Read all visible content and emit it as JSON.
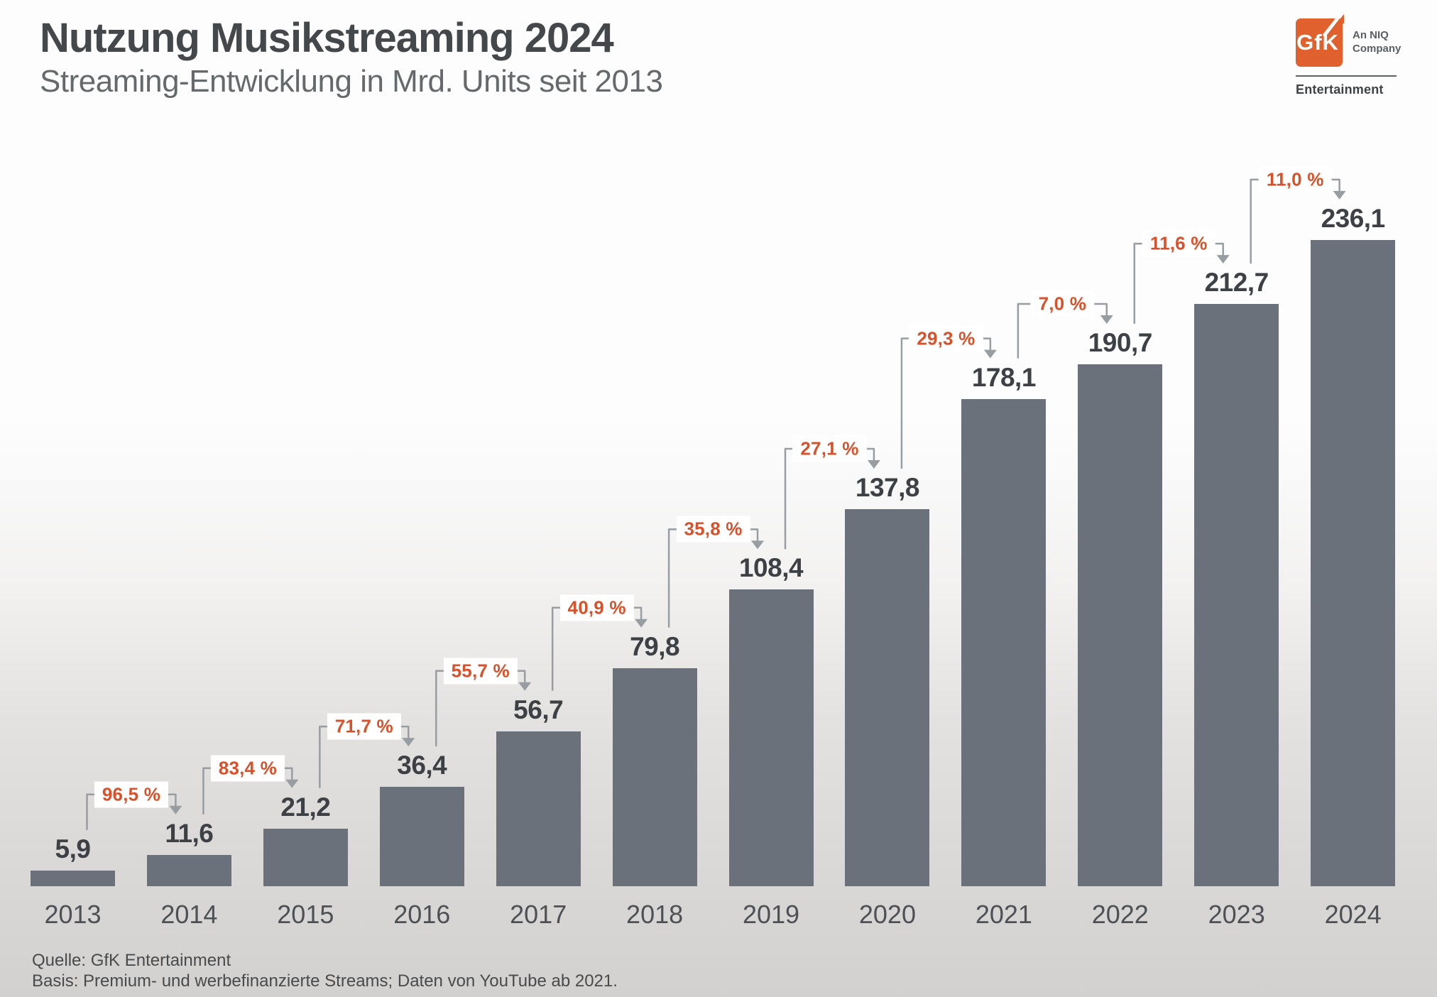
{
  "header": {
    "title": "Nutzung Musikstreaming 2024",
    "subtitle": "Streaming-Entwicklung in Mrd. Units seit 2013"
  },
  "logo": {
    "monogram": "GfK",
    "tagline_line1": "An NIQ",
    "tagline_line2": "Company",
    "division": "Entertainment",
    "brand_color": "#e0612e"
  },
  "chart_data": {
    "type": "bar",
    "title": "Nutzung Musikstreaming 2024",
    "subtitle": "Streaming-Entwicklung in Mrd. Units seit 2013",
    "unit": "Mrd. Units",
    "categories": [
      "2013",
      "2014",
      "2015",
      "2016",
      "2017",
      "2018",
      "2019",
      "2020",
      "2021",
      "2022",
      "2023",
      "2024"
    ],
    "values": [
      5.9,
      11.6,
      21.2,
      36.4,
      56.7,
      79.8,
      108.4,
      137.8,
      178.1,
      190.7,
      212.7,
      236.1
    ],
    "value_labels": [
      "5,9",
      "11,6",
      "21,2",
      "36,4",
      "56,7",
      "79,8",
      "108,4",
      "137,8",
      "178,1",
      "190,7",
      "212,7",
      "236,1"
    ],
    "growth_percent_labels": [
      "96,5 %",
      "83,4 %",
      "71,7 %",
      "55,7 %",
      "40,9 %",
      "35,8 %",
      "27,1 %",
      "29,3 %",
      "7,0 %",
      "11,6 %",
      "11,0 %"
    ],
    "ylim": [
      0,
      245
    ],
    "grid": false,
    "legend": false,
    "bar_color": "#6a717a",
    "accent_color": "#d7512a",
    "connector_color": "#989da2",
    "value_label_color": "#3d4145"
  },
  "footer": {
    "source": "Quelle: GfK Entertainment",
    "basis": "Basis: Premium- und werbefinanzierte Streams; Daten von YouTube ab 2021."
  }
}
